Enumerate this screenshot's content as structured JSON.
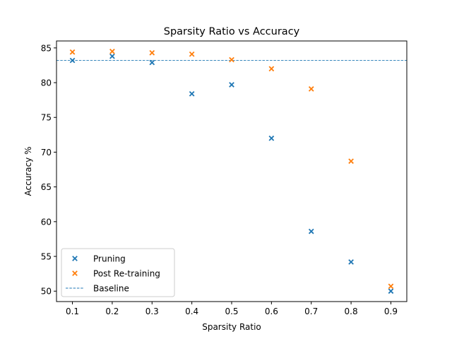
{
  "chart_data": {
    "type": "scatter",
    "title": "Sparsity Ratio vs Accuracy",
    "xlabel": "Sparsity Ratio",
    "ylabel": "Accuracy %",
    "xlim": [
      0.06,
      0.94
    ],
    "ylim": [
      48.5,
      86.0
    ],
    "xticks": [
      0.1,
      0.2,
      0.3,
      0.4,
      0.5,
      0.6,
      0.7,
      0.8,
      0.9
    ],
    "yticks": [
      50,
      55,
      60,
      65,
      70,
      75,
      80,
      85
    ],
    "grid": false,
    "legend_position": "lower-left",
    "marker": "x",
    "series": [
      {
        "name": "Pruning",
        "color": "#1f77b4",
        "x": [
          0.1,
          0.2,
          0.3,
          0.4,
          0.5,
          0.6,
          0.7,
          0.8,
          0.9
        ],
        "y": [
          83.2,
          83.8,
          82.9,
          78.4,
          79.7,
          72.0,
          58.6,
          54.2,
          50.0
        ]
      },
      {
        "name": "Post Re-training",
        "color": "#ff7f0e",
        "x": [
          0.1,
          0.2,
          0.3,
          0.4,
          0.5,
          0.6,
          0.7,
          0.8,
          0.9
        ],
        "y": [
          84.4,
          84.5,
          84.3,
          84.1,
          83.3,
          82.0,
          79.1,
          68.7,
          50.7
        ]
      }
    ],
    "reference_lines": [
      {
        "name": "Baseline",
        "orientation": "horizontal",
        "y": 83.2,
        "style": "dashed",
        "color": "#1f77b4"
      }
    ]
  }
}
